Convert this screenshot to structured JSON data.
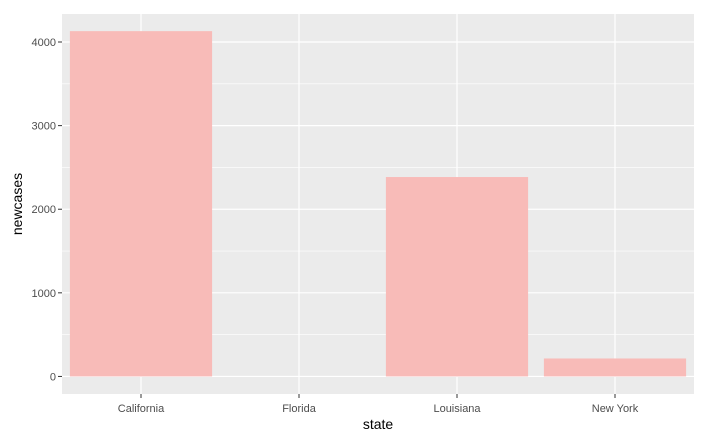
{
  "chart_data": {
    "type": "bar",
    "categories": [
      "California",
      "Florida",
      "Louisiana",
      "New York"
    ],
    "values": [
      4130,
      0,
      2385,
      215
    ],
    "xlabel": "state",
    "ylabel": "newcases",
    "ylim": [
      -210,
      4335
    ],
    "yticks": [
      0,
      1000,
      2000,
      3000,
      4000
    ],
    "ytick_labels": [
      "0",
      "1000",
      "2000",
      "3000",
      "4000"
    ],
    "grid": true,
    "colors": {
      "panel": "#ebebeb",
      "gridline": "#ffffff",
      "bar": "#f8bbb8",
      "tick": "#333333"
    }
  }
}
